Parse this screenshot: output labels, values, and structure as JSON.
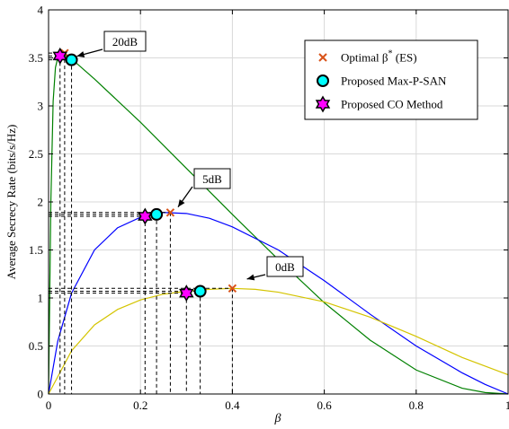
{
  "chart_data": {
    "type": "line",
    "title": "",
    "xlabel": "β",
    "ylabel": "Average Secrecy Rate (bits/s/Hz)",
    "xlim": [
      0,
      1
    ],
    "ylim": [
      0,
      4
    ],
    "x_ticks": [
      0,
      0.2,
      0.4,
      0.6,
      0.8,
      1
    ],
    "x_tick_labels": [
      "0",
      "0.2",
      "0.4",
      "0.6",
      "0.8",
      "1"
    ],
    "y_ticks": [
      0,
      0.5,
      1,
      1.5,
      2,
      2.5,
      3,
      3.5,
      4
    ],
    "y_tick_labels": [
      "0",
      "0.5",
      "1",
      "1.5",
      "2",
      "2.5",
      "3",
      "3.5",
      "4"
    ],
    "grid": true,
    "legend_position": "top-right",
    "legend": [
      {
        "label_main": "Optimal β",
        "label_sup": "*",
        "label_tail": " (ES)",
        "marker": "x",
        "color": "#d95319"
      },
      {
        "label_main": "Proposed Max-P-SAN",
        "marker": "circle",
        "color": "#00ffff"
      },
      {
        "label_main": "Proposed CO Method",
        "marker": "hexagram",
        "color": "#ff00ff"
      }
    ],
    "series": [
      {
        "snr_label": "20dB",
        "color": "#008000",
        "x": [
          0,
          0.005,
          0.01,
          0.015,
          0.02,
          0.025,
          0.03,
          0.04,
          0.05,
          0.1,
          0.2,
          0.3,
          0.4,
          0.5,
          0.6,
          0.7,
          0.8,
          0.9,
          0.95,
          1.0
        ],
        "y": [
          0,
          2.0,
          3.05,
          3.4,
          3.5,
          3.52,
          3.53,
          3.52,
          3.49,
          3.28,
          2.83,
          2.35,
          1.87,
          1.4,
          0.95,
          0.56,
          0.25,
          0.06,
          0.015,
          0
        ],
        "optimal_es": {
          "x": 0.035,
          "y": 3.55
        },
        "max_p_san": {
          "x": 0.05,
          "y": 3.48
        },
        "co_method": {
          "x": 0.025,
          "y": 3.52
        }
      },
      {
        "snr_label": "5dB",
        "color": "#0000ff",
        "x": [
          0,
          0.02,
          0.05,
          0.1,
          0.15,
          0.2,
          0.25,
          0.3,
          0.35,
          0.4,
          0.5,
          0.6,
          0.7,
          0.8,
          0.9,
          0.95,
          1.0
        ],
        "y": [
          0,
          0.55,
          1.05,
          1.5,
          1.73,
          1.84,
          1.89,
          1.88,
          1.83,
          1.74,
          1.5,
          1.18,
          0.83,
          0.5,
          0.22,
          0.1,
          0
        ],
        "optimal_es": {
          "x": 0.265,
          "y": 1.89
        },
        "max_p_san": {
          "x": 0.235,
          "y": 1.87
        },
        "co_method": {
          "x": 0.21,
          "y": 1.85
        }
      },
      {
        "snr_label": "0dB",
        "color": "#d4c400",
        "x": [
          0,
          0.05,
          0.1,
          0.15,
          0.2,
          0.25,
          0.3,
          0.35,
          0.4,
          0.45,
          0.5,
          0.6,
          0.7,
          0.8,
          0.9,
          1.0
        ],
        "y": [
          0,
          0.45,
          0.72,
          0.88,
          0.98,
          1.04,
          1.07,
          1.09,
          1.1,
          1.09,
          1.06,
          0.96,
          0.8,
          0.6,
          0.38,
          0.2
        ],
        "optimal_es": {
          "x": 0.4,
          "y": 1.1
        },
        "max_p_san": {
          "x": 0.33,
          "y": 1.07
        },
        "co_method": {
          "x": 0.3,
          "y": 1.05
        }
      }
    ],
    "annotations": [
      {
        "text": "20dB",
        "series": 0,
        "target": {
          "x": 0.05,
          "y": 3.48
        }
      },
      {
        "text": "5dB",
        "series": 1,
        "target": {
          "x": 0.27,
          "y": 1.91
        }
      },
      {
        "text": "0dB",
        "series": 2,
        "target": {
          "x": 0.42,
          "y": 1.16
        }
      }
    ]
  }
}
